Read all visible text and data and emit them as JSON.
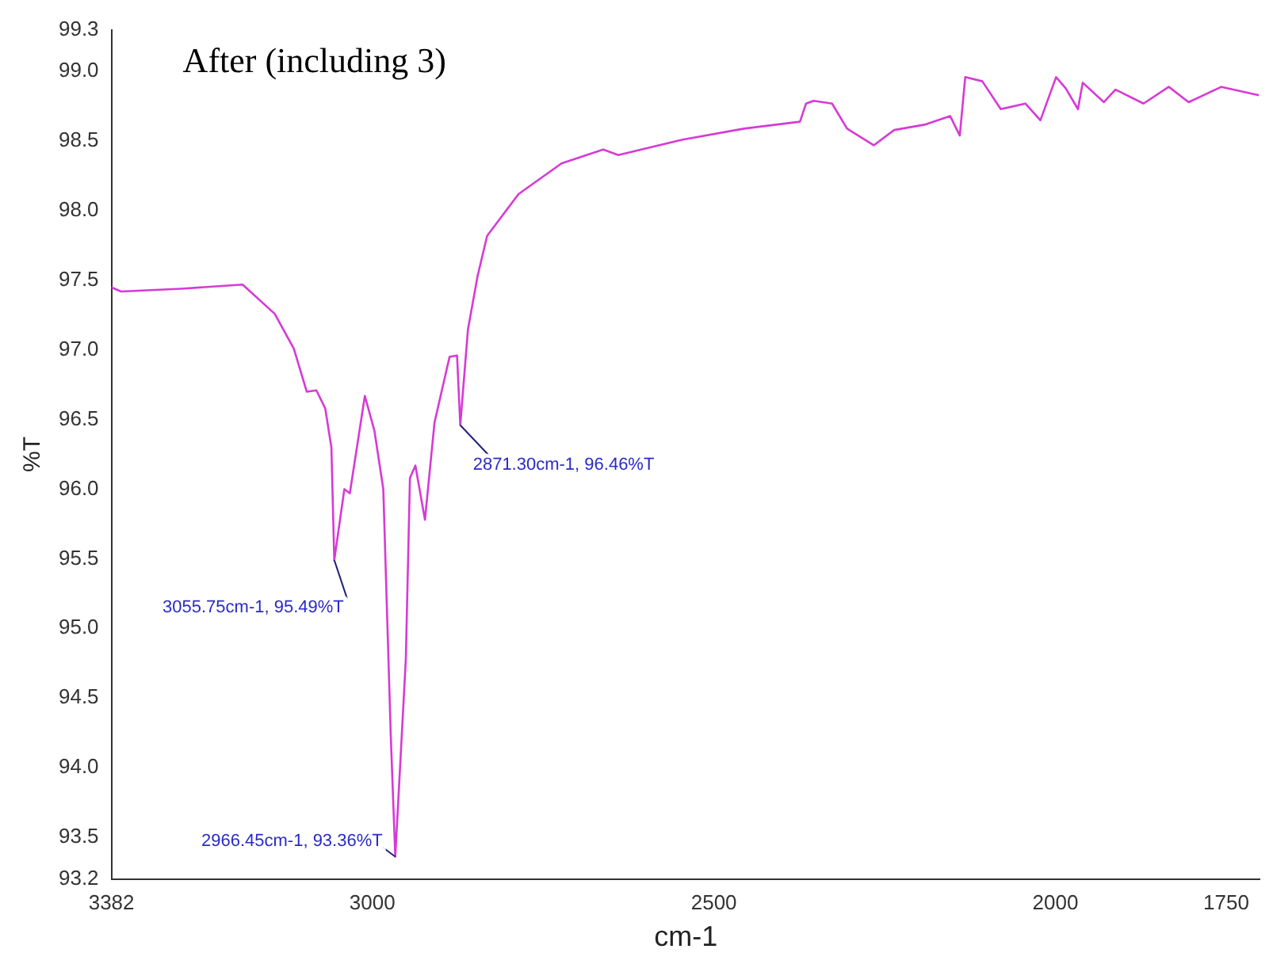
{
  "chart_data": {
    "type": "line",
    "title": "After (including 3)",
    "xlabel": "cm-1",
    "ylabel": "%T",
    "x": [
      3382,
      3368,
      3280,
      3190,
      3143,
      3115,
      3096,
      3082,
      3069,
      3060,
      3055.75,
      3041,
      3033,
      3011,
      2997,
      2984,
      2973,
      2966.45,
      2951,
      2945,
      2937,
      2923,
      2909,
      2887,
      2876,
      2871.3,
      2860,
      2846,
      2832,
      2786,
      2723,
      2662,
      2640,
      2547,
      2456,
      2374,
      2365,
      2354,
      2327,
      2305,
      2266,
      2236,
      2190,
      2154,
      2140,
      2132,
      2107,
      2080,
      2044,
      2022,
      1999,
      1985,
      1967,
      1960,
      1929,
      1912,
      1871,
      1834,
      1805,
      1757,
      1702
    ],
    "series": [
      {
        "color": "#d63ad6",
        "values": [
          97.45,
          97.42,
          97.44,
          97.47,
          97.26,
          97.01,
          96.7,
          96.71,
          96.58,
          96.3,
          95.49,
          96.0,
          95.97,
          96.67,
          96.42,
          96.0,
          94.22,
          93.36,
          94.78,
          96.08,
          96.17,
          95.78,
          96.48,
          96.95,
          96.96,
          96.46,
          97.15,
          97.53,
          97.82,
          98.12,
          98.34,
          98.44,
          98.4,
          98.51,
          98.59,
          98.64,
          98.77,
          98.79,
          98.77,
          98.59,
          98.47,
          98.58,
          98.62,
          98.68,
          98.54,
          98.96,
          98.93,
          98.73,
          98.77,
          98.65,
          98.96,
          98.88,
          98.73,
          98.92,
          98.78,
          98.87,
          98.77,
          98.89,
          98.78,
          98.89,
          98.83
        ]
      }
    ],
    "xlim": [
      3382,
      1700
    ],
    "xticks": [
      3382,
      3000,
      2500,
      2000,
      1750
    ],
    "ylim": [
      93.2,
      99.3
    ],
    "yticks": [
      93.2,
      93.5,
      {
        "value": 94,
        "label": "94.0"
      },
      94.5,
      {
        "value": 95,
        "label": "95.0"
      },
      95.5,
      {
        "value": 96,
        "label": "96.0"
      },
      96.5,
      {
        "value": 97,
        "label": "97.0"
      },
      97.5,
      {
        "value": 98,
        "label": "98.0"
      },
      98.5,
      {
        "value": 99,
        "label": "99.0"
      },
      99.3
    ],
    "annotations": [
      {
        "text": "2871.30cm-1, 96.46%T",
        "x": 2871.3,
        "y": 96.46
      },
      {
        "text": "3055.75cm-1, 95.49%T",
        "x": 3055.75,
        "y": 95.49
      },
      {
        "text": "2966.45cm-1, 93.36%T",
        "x": 2966.45,
        "y": 93.36
      }
    ],
    "grid": false,
    "legend": false,
    "marker": "none",
    "line_style": "solid"
  }
}
